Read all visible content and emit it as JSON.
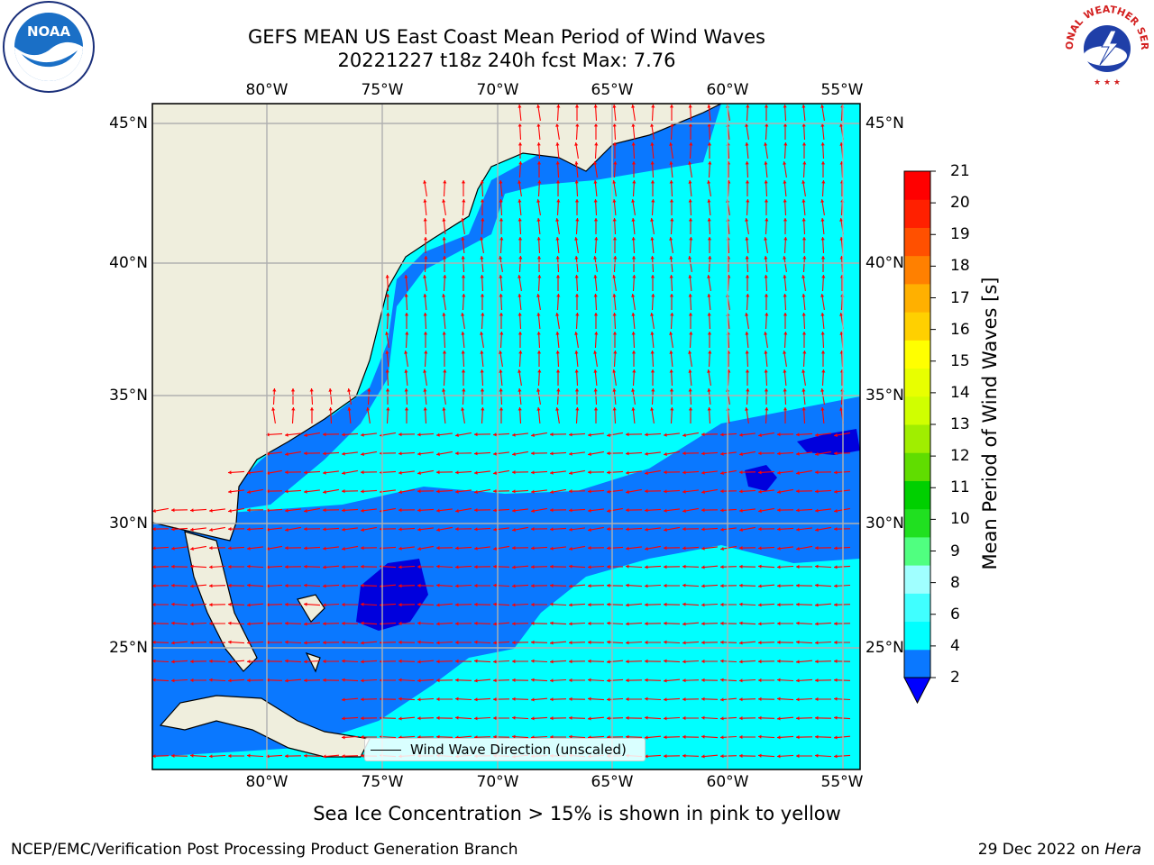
{
  "header": {
    "title_line1": "GEFS MEAN US East Coast Mean Period of Wind Waves",
    "title_line2": "20221227 t18z 240h fcst   Max: 7.76"
  },
  "logos": {
    "left": {
      "icon": "noaa-logo",
      "text": "NOAA"
    },
    "right": {
      "icon": "nws-logo",
      "text": "NATIONAL WEATHER SERVICE"
    }
  },
  "map": {
    "longitude_labels": [
      "80°W",
      "75°W",
      "70°W",
      "65°W",
      "60°W",
      "55°W"
    ],
    "latitude_labels": [
      "45°N",
      "40°N",
      "35°N",
      "30°N",
      "25°N"
    ],
    "legend_label": "Wind Wave Direction (unscaled)",
    "colors": {
      "land": "#efeedd",
      "period_2_4": "#0a78ff",
      "period_4_6": "#00ffff",
      "period_below_2": "#0000dd",
      "arrow": "#ff0000",
      "grid": "#b0b0b0"
    }
  },
  "colorbar": {
    "label": "Mean Period of Wind Waves [s]",
    "ticks": [
      "2",
      "4",
      "6",
      "8",
      "9",
      "10",
      "11",
      "12",
      "13",
      "14",
      "15",
      "16",
      "17",
      "18",
      "19",
      "20",
      "21"
    ],
    "colors": [
      "#0a78ff",
      "#00ffff",
      "#40ffff",
      "#a0ffff",
      "#50ff80",
      "#20e020",
      "#00d000",
      "#60dd00",
      "#a0ee00",
      "#d0ff00",
      "#e8ff00",
      "#ffff00",
      "#ffd000",
      "#ffb000",
      "#ff8000",
      "#ff5000",
      "#ff2000",
      "#ff0000"
    ],
    "extend_color": "#0000ff"
  },
  "footer": {
    "note": "Sea Ice Concentration > 15% is shown in pink to yellow",
    "credit": "NCEP/EMC/Verification Post Processing Product Generation Branch",
    "date_text": "29 Dec 2022 on",
    "host": "Hera"
  }
}
